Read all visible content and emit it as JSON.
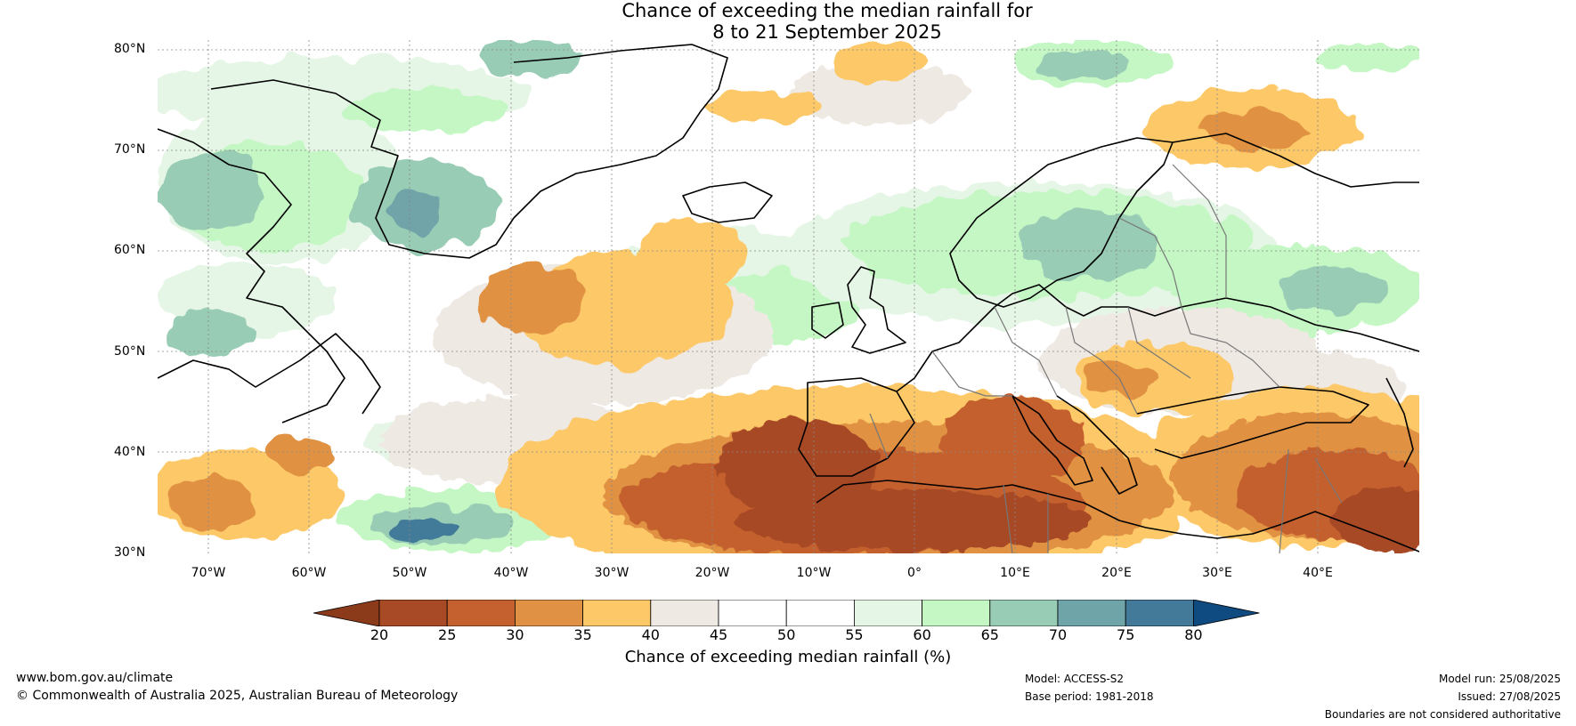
{
  "title": {
    "line1": "Chance of exceeding the median rainfall for",
    "line2": "8 to 21 September 2025"
  },
  "map": {
    "lat_labels": [
      "80°N",
      "70°N",
      "60°N",
      "50°N",
      "40°N",
      "30°N"
    ],
    "lon_labels": [
      "70°W",
      "60°W",
      "50°W",
      "40°W",
      "30°W",
      "20°W",
      "10°W",
      "0°",
      "10°E",
      "20°E",
      "30°E",
      "40°E"
    ],
    "extent": {
      "lon_min": -75,
      "lon_max": 50,
      "lat_min": 30,
      "lat_max": 81
    },
    "dominant_dry_regions": [
      "Iberia",
      "North Africa",
      "Mediterranean",
      "Turkey and Middle East",
      "Barents Sea"
    ],
    "dominant_wet_regions": [
      "Greenland west coast",
      "Scandinavia",
      "Northeast Canada coast"
    ]
  },
  "colorbar": {
    "ticks": [
      "20",
      "25",
      "30",
      "35",
      "40",
      "45",
      "50",
      "55",
      "60",
      "65",
      "70",
      "75",
      "80"
    ],
    "colors": [
      "#8b3a1a",
      "#a84a26",
      "#c4612e",
      "#e09143",
      "#fdc867",
      "#efe9e4",
      "#ffffff",
      "#ffffff",
      "#e6f6e6",
      "#c5f7c5",
      "#98ccb5",
      "#6fa4a8",
      "#437a99",
      "#0f4a80"
    ],
    "title": "Chance of exceeding median rainfall (%)"
  },
  "footer": {
    "website": "www.bom.gov.au/climate",
    "copyright": "© Commonwealth of Australia 2025, Australian Bureau of Meteorology",
    "model": "Model: ACCESS-S2",
    "base_period": "Base period: 1981-2018",
    "model_run": "Model run: 25/08/2025",
    "issued": "Issued: 27/08/2025",
    "disclaimer": "Boundaries are not considered authoritative"
  }
}
